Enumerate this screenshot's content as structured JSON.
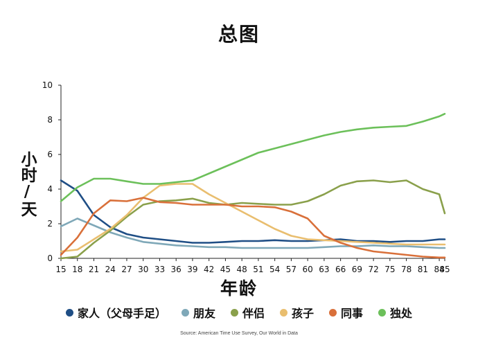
{
  "chart_data": {
    "type": "line",
    "title": "总图",
    "ylabel": "小时/天",
    "xlabel": "年龄",
    "x_ticks": [
      15,
      18,
      21,
      24,
      27,
      30,
      33,
      36,
      39,
      42,
      45,
      48,
      51,
      54,
      57,
      60,
      63,
      66,
      69,
      72,
      75,
      78,
      81,
      84,
      85
    ],
    "y_ticks": [
      0,
      2,
      4,
      6,
      8,
      10
    ],
    "xlim": [
      15,
      85
    ],
    "ylim": [
      0,
      10
    ],
    "grid": false,
    "legend_position": "bottom",
    "source": "Source: American Time Use Survey, Our World in Data",
    "x": [
      15,
      18,
      21,
      24,
      27,
      30,
      33,
      36,
      39,
      42,
      45,
      48,
      51,
      54,
      57,
      60,
      63,
      66,
      69,
      72,
      75,
      78,
      81,
      84,
      85
    ],
    "series": [
      {
        "name": "家人（父母手足）",
        "color": "#1f4e85",
        "values": [
          4.5,
          3.9,
          2.5,
          1.8,
          1.4,
          1.2,
          1.1,
          1.0,
          0.9,
          0.9,
          0.95,
          1.0,
          1.0,
          1.05,
          1.0,
          1.0,
          1.05,
          1.1,
          1.0,
          1.0,
          0.95,
          1.0,
          1.0,
          1.1,
          1.1
        ]
      },
      {
        "name": "朋友",
        "color": "#7fa8b8",
        "values": [
          1.85,
          2.3,
          1.9,
          1.5,
          1.2,
          0.95,
          0.85,
          0.75,
          0.7,
          0.65,
          0.65,
          0.6,
          0.6,
          0.6,
          0.6,
          0.6,
          0.65,
          0.7,
          0.7,
          0.75,
          0.7,
          0.7,
          0.65,
          0.6,
          0.6
        ]
      },
      {
        "name": "伴侣",
        "color": "#8aa04b",
        "values": [
          0.0,
          0.1,
          0.9,
          1.6,
          2.4,
          3.1,
          3.3,
          3.35,
          3.45,
          3.2,
          3.1,
          3.2,
          3.15,
          3.1,
          3.1,
          3.3,
          3.7,
          4.2,
          4.45,
          4.5,
          4.4,
          4.5,
          4.0,
          3.7,
          2.6
        ]
      },
      {
        "name": "孩子",
        "color": "#e9be6f",
        "values": [
          0.4,
          0.5,
          1.1,
          1.7,
          2.5,
          3.5,
          4.2,
          4.3,
          4.3,
          3.7,
          3.2,
          2.7,
          2.2,
          1.7,
          1.3,
          1.1,
          1.05,
          1.0,
          0.95,
          0.9,
          0.85,
          0.8,
          0.8,
          0.8,
          0.8
        ]
      },
      {
        "name": "同事",
        "color": "#d9703a",
        "values": [
          0.2,
          1.2,
          2.6,
          3.35,
          3.3,
          3.5,
          3.25,
          3.2,
          3.1,
          3.1,
          3.1,
          3.0,
          3.0,
          2.95,
          2.7,
          2.3,
          1.3,
          0.9,
          0.6,
          0.4,
          0.3,
          0.2,
          0.1,
          0.05,
          0.05
        ]
      },
      {
        "name": "独处",
        "color": "#6cc05a",
        "values": [
          3.3,
          4.1,
          4.6,
          4.6,
          4.45,
          4.3,
          4.3,
          4.4,
          4.5,
          4.9,
          5.3,
          5.7,
          6.1,
          6.35,
          6.6,
          6.85,
          7.1,
          7.3,
          7.45,
          7.55,
          7.6,
          7.65,
          7.9,
          8.2,
          8.35
        ]
      }
    ]
  }
}
